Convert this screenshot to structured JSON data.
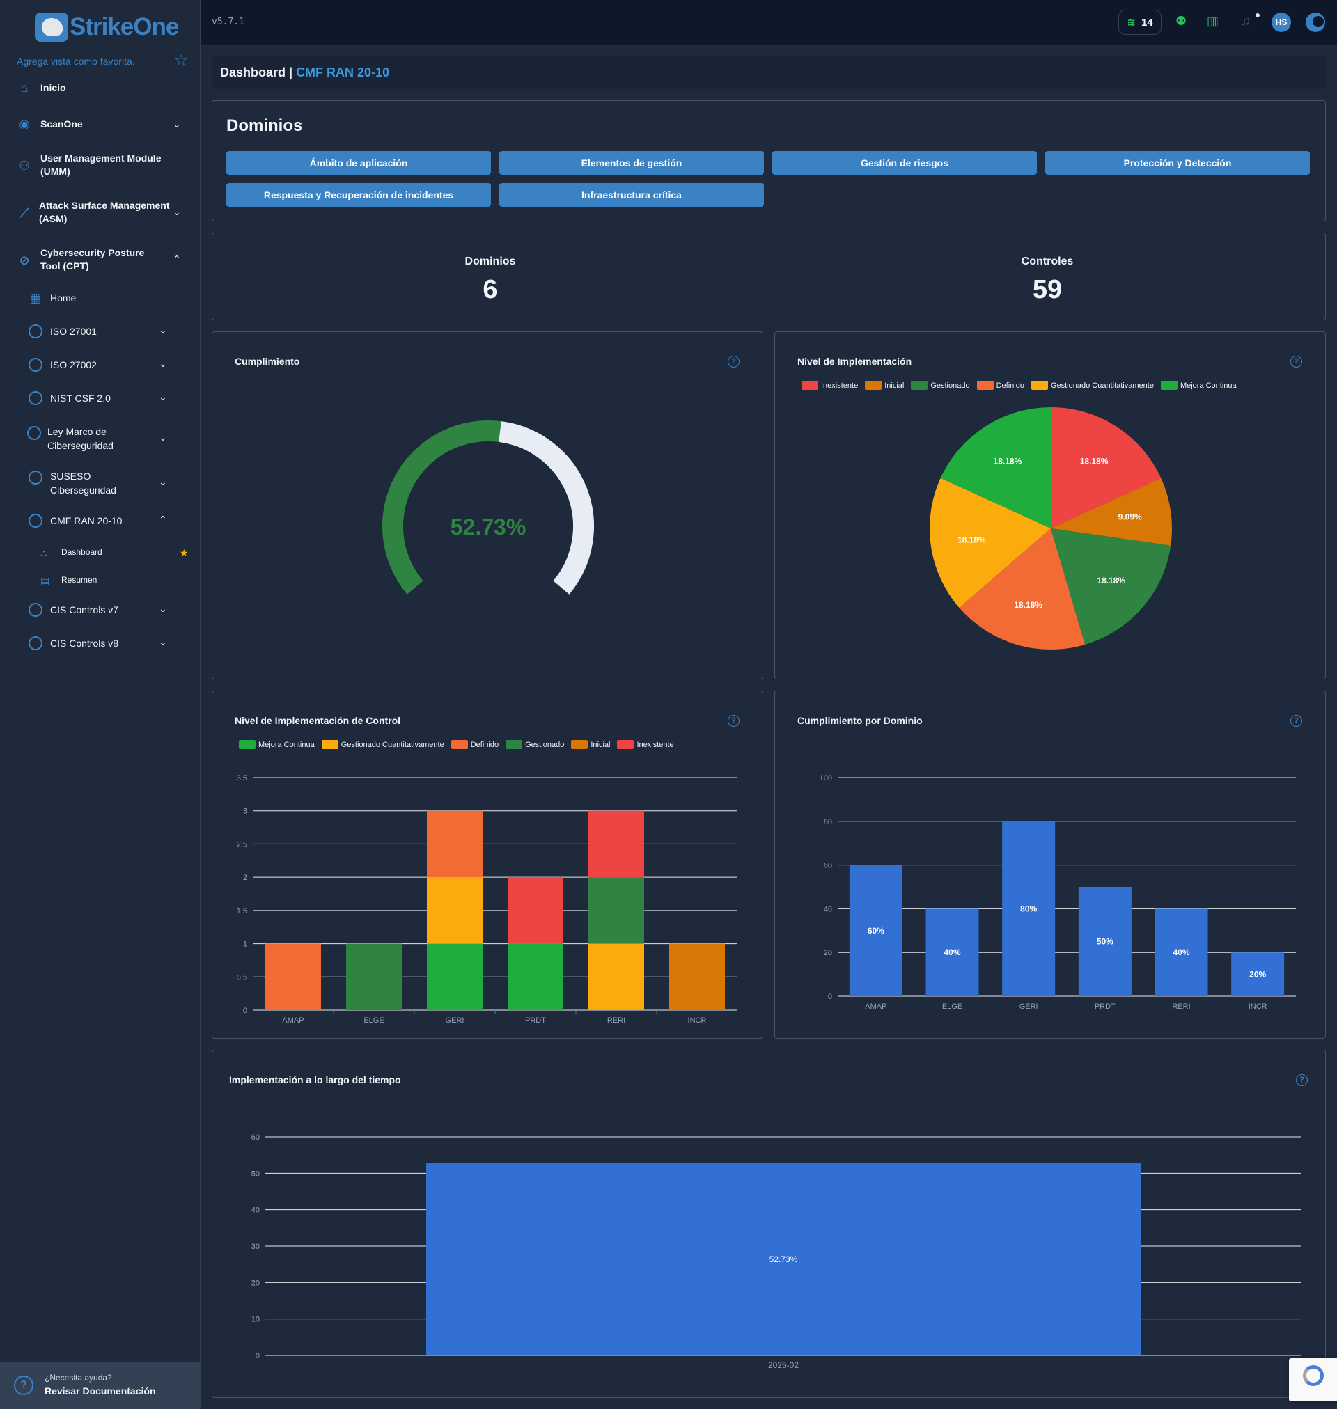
{
  "app": {
    "name": "StrikeOne",
    "version": "v5.7.1"
  },
  "sidebar": {
    "favorite_hint": "Agrega vista como favorita.",
    "items": [
      {
        "label": "Inicio",
        "icon": "home-icon"
      },
      {
        "label": "ScanOne",
        "icon": "eye-icon"
      },
      {
        "label": "User Management Module (UMM)",
        "icon": "users-icon"
      },
      {
        "label": "Attack Surface Management (ASM)",
        "icon": "chart-icon"
      },
      {
        "label": "Cybersecurity Posture Tool (CPT)",
        "icon": "check-circle-icon"
      }
    ],
    "cpt_items": [
      {
        "label": "Home"
      },
      {
        "label": "ISO 27001"
      },
      {
        "label": "ISO 27002"
      },
      {
        "label": "NIST CSF 2.0"
      },
      {
        "label": "Ley Marco de Ciberseguridad"
      },
      {
        "label": "SUSESO Ciberseguridad"
      },
      {
        "label": "CMF RAN 20-10"
      },
      {
        "label": "CIS Controls v7"
      },
      {
        "label": "CIS Controls v8"
      }
    ],
    "cmf_items": [
      {
        "label": "Dashboard"
      },
      {
        "label": "Resumen"
      }
    ],
    "help": {
      "line1": "¿Necesita ayuda?",
      "line2": "Revisar Documentación"
    }
  },
  "topbar": {
    "credits": "14",
    "avatar_initials": "HS"
  },
  "breadcrumb": {
    "prefix": "Dashboard | ",
    "current": "CMF RAN 20-10"
  },
  "dominios_card": {
    "title": "Dominios",
    "buttons": [
      "Ámbito de aplicación",
      "Elementos de gestión",
      "Gestión de riesgos",
      "Protección y Detección",
      "Respuesta y Recuperación de incidentes",
      "Infraestructura crítica"
    ]
  },
  "stats": {
    "dominios_label": "Dominios",
    "dominios_value": "6",
    "controles_label": "Controles",
    "controles_value": "59"
  },
  "colors": {
    "inexistente": "#ef4444",
    "inicial": "#d97706",
    "gestionado": "#2f8442",
    "definido": "#f26b35",
    "gestionado_cuant": "#fbab0b",
    "mejora_continua": "#1fae3e",
    "blue": "#3370d3",
    "accent": "#3b82c4"
  },
  "chart_data": [
    {
      "type": "gauge",
      "title": "Cumplimiento",
      "value": 52.73,
      "value_label": "52.73%"
    },
    {
      "type": "pie",
      "title": "Nivel de Implementación",
      "legend": [
        "Inexistente",
        "Inicial",
        "Gestionado",
        "Definido",
        "Gestionado Cuantitativamente",
        "Mejora Continua"
      ],
      "slices": [
        {
          "name": "Inexistente",
          "value": 18.18,
          "label": "18.18%"
        },
        {
          "name": "Inicial",
          "value": 9.09,
          "label": "9.09%"
        },
        {
          "name": "Gestionado",
          "value": 18.18,
          "label": "18.18%"
        },
        {
          "name": "Definido",
          "value": 18.18,
          "label": "18.18%"
        },
        {
          "name": "Gestionado Cuantitativamente",
          "value": 18.18,
          "label": "18.18%"
        },
        {
          "name": "Mejora Continua",
          "value": 18.18,
          "label": "18.18%"
        }
      ]
    },
    {
      "type": "bar",
      "stacked": true,
      "title": "Nivel de Implementación de Control",
      "categories": [
        "AMAP",
        "ELGE",
        "GERI",
        "PRDT",
        "RERI",
        "INCR"
      ],
      "ylim": [
        0,
        3.5
      ],
      "yticks": [
        "0",
        "0.5",
        "1",
        "1.5",
        "2",
        "2.5",
        "3",
        "3.5"
      ],
      "legend": [
        "Mejora Continua",
        "Gestionado Cuantitativamente",
        "Definido",
        "Gestionado",
        "Inicial",
        "Inexistente"
      ],
      "series": [
        {
          "name": "Mejora Continua",
          "values": [
            0,
            0,
            1,
            1,
            0,
            0
          ]
        },
        {
          "name": "Gestionado Cuantitativamente",
          "values": [
            0,
            0,
            1,
            0,
            1,
            0
          ]
        },
        {
          "name": "Definido",
          "values": [
            1,
            0,
            1,
            0,
            0,
            0
          ]
        },
        {
          "name": "Gestionado",
          "values": [
            0,
            1,
            0,
            0,
            1,
            0
          ]
        },
        {
          "name": "Inicial",
          "values": [
            0,
            0,
            0,
            0,
            0,
            1
          ]
        },
        {
          "name": "Inexistente",
          "values": [
            0,
            0,
            0,
            1,
            1,
            0
          ]
        }
      ]
    },
    {
      "type": "bar",
      "title": "Cumplimiento por Dominio",
      "categories": [
        "AMAP",
        "ELGE",
        "GERI",
        "PRDT",
        "RERI",
        "INCR"
      ],
      "values": [
        60,
        40,
        80,
        50,
        40,
        20
      ],
      "labels": [
        "60%",
        "40%",
        "80%",
        "50%",
        "40%",
        "20%"
      ],
      "ylim": [
        0,
        100
      ],
      "yticks": [
        "0",
        "20",
        "40",
        "60",
        "80",
        "100"
      ]
    },
    {
      "type": "bar",
      "title": "Implementación a lo largo del tiempo",
      "categories": [
        "2025-02"
      ],
      "values": [
        52.73
      ],
      "labels": [
        "52.73%"
      ],
      "ylim": [
        0,
        60
      ],
      "yticks": [
        "0",
        "10",
        "20",
        "30",
        "40",
        "50",
        "60"
      ]
    }
  ]
}
